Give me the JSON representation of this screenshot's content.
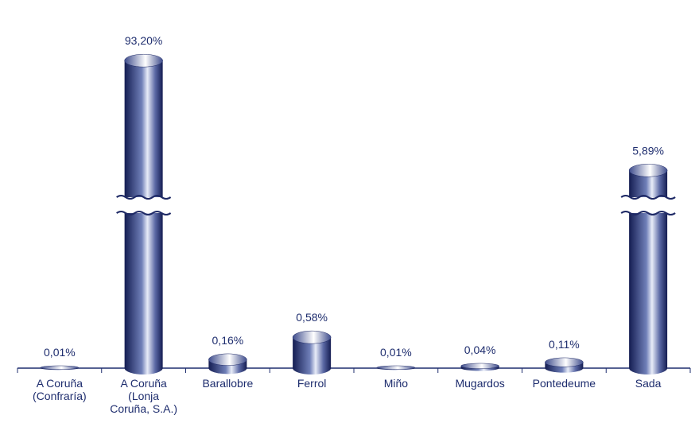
{
  "chart_data": {
    "type": "bar",
    "categories": [
      "A Coruña\n(Confraría)",
      "A Coruña\n(Lonja\nCoruña, S.A.)",
      "Barallobre",
      "Ferrol",
      "Miño",
      "Mugardos",
      "Pontedeume",
      "Sada"
    ],
    "values": [
      0.01,
      93.2,
      0.16,
      0.58,
      0.01,
      0.04,
      0.11,
      5.89
    ],
    "value_labels": [
      "0,01%",
      "93,20%",
      "0,16%",
      "0,58%",
      "0,01%",
      "0,04%",
      "0,11%",
      "5,89%"
    ],
    "color": "#1f2a66",
    "axis_break": true
  }
}
